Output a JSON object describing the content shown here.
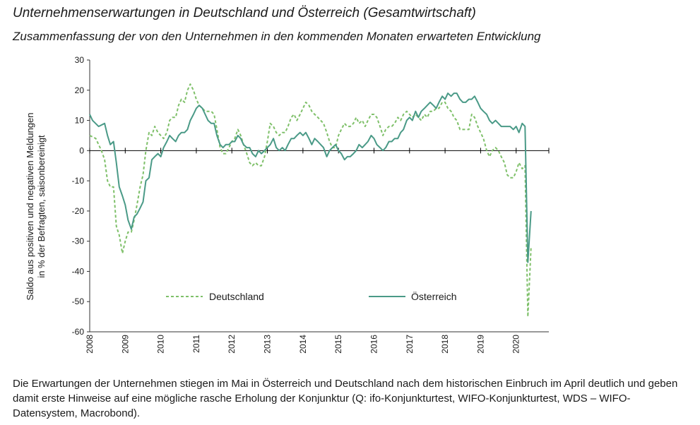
{
  "title": "Unternehmenserwartungen in Deutschland und Österreich (Gesamtwirtschaft)",
  "subtitle": "Zusammenfassung der von den Unternehmen in den kommenden Monaten erwarteten Entwicklung",
  "caption": "Die Erwartungen der Unternehmen stiegen im Mai in Österreich und Deutschland nach dem historischen Einbruch im April deutlich und geben damit erste Hinweise auf eine mögliche rasche Erholung der Konjunktur (Q: ifo-Konjunkturtest, WIFO-Konjunkturtest, WDS – WIFO-Datensystem, Macrobond).",
  "chart_data": {
    "type": "line",
    "ylabel_line1": "Saldo aus positiven und negativen Meldungen",
    "ylabel_line2": "in % der Befragten, saisonbereinigt",
    "ylim": [
      -60,
      30
    ],
    "yticks": [
      30,
      20,
      10,
      0,
      -10,
      -20,
      -30,
      -40,
      -50,
      -60
    ],
    "xlim": [
      2008,
      2020.92
    ],
    "xticks": [
      "2008",
      "2009",
      "2010",
      "2011",
      "2012",
      "2013",
      "2014",
      "2015",
      "2016",
      "2017",
      "2018",
      "2019",
      "2020"
    ],
    "legend_position": "inside-lower-middle",
    "series": [
      {
        "name": "Deutschland",
        "style": "dashed",
        "color": "#7fc06a",
        "points": [
          [
            2008.0,
            5
          ],
          [
            2008.17,
            4
          ],
          [
            2008.33,
            0
          ],
          [
            2008.42,
            -3
          ],
          [
            2008.5,
            -10
          ],
          [
            2008.58,
            -12
          ],
          [
            2008.67,
            -12
          ],
          [
            2008.75,
            -25
          ],
          [
            2008.83,
            -28
          ],
          [
            2008.92,
            -34
          ],
          [
            2009.0,
            -30
          ],
          [
            2009.08,
            -27
          ],
          [
            2009.17,
            -27
          ],
          [
            2009.25,
            -23
          ],
          [
            2009.33,
            -18
          ],
          [
            2009.42,
            -12
          ],
          [
            2009.5,
            -8
          ],
          [
            2009.58,
            0
          ],
          [
            2009.67,
            6
          ],
          [
            2009.75,
            5
          ],
          [
            2009.83,
            8
          ],
          [
            2009.92,
            6
          ],
          [
            2010.0,
            5
          ],
          [
            2010.08,
            4
          ],
          [
            2010.17,
            6
          ],
          [
            2010.25,
            10
          ],
          [
            2010.33,
            11
          ],
          [
            2010.42,
            11
          ],
          [
            2010.5,
            15
          ],
          [
            2010.58,
            17
          ],
          [
            2010.67,
            16
          ],
          [
            2010.75,
            20
          ],
          [
            2010.83,
            22
          ],
          [
            2010.92,
            20
          ],
          [
            2011.0,
            17
          ],
          [
            2011.08,
            15
          ],
          [
            2011.17,
            14
          ],
          [
            2011.25,
            13
          ],
          [
            2011.33,
            13
          ],
          [
            2011.42,
            13
          ],
          [
            2011.5,
            12
          ],
          [
            2011.58,
            7
          ],
          [
            2011.67,
            1
          ],
          [
            2011.75,
            -1
          ],
          [
            2011.83,
            -1
          ],
          [
            2011.92,
            1
          ],
          [
            2012.0,
            3
          ],
          [
            2012.08,
            4
          ],
          [
            2012.17,
            7
          ],
          [
            2012.25,
            5
          ],
          [
            2012.33,
            2
          ],
          [
            2012.42,
            -1
          ],
          [
            2012.5,
            -4
          ],
          [
            2012.58,
            -5
          ],
          [
            2012.67,
            -4
          ],
          [
            2012.75,
            -5
          ],
          [
            2012.83,
            -5
          ],
          [
            2012.92,
            -2
          ],
          [
            2013.0,
            3
          ],
          [
            2013.08,
            9
          ],
          [
            2013.17,
            8
          ],
          [
            2013.25,
            6
          ],
          [
            2013.33,
            5
          ],
          [
            2013.42,
            6
          ],
          [
            2013.5,
            6
          ],
          [
            2013.58,
            8
          ],
          [
            2013.67,
            11
          ],
          [
            2013.75,
            12
          ],
          [
            2013.83,
            10
          ],
          [
            2013.92,
            12
          ],
          [
            2014.0,
            14
          ],
          [
            2014.08,
            16
          ],
          [
            2014.17,
            15
          ],
          [
            2014.25,
            13
          ],
          [
            2014.33,
            12
          ],
          [
            2014.42,
            11
          ],
          [
            2014.5,
            10
          ],
          [
            2014.58,
            9
          ],
          [
            2014.67,
            6
          ],
          [
            2014.75,
            3
          ],
          [
            2014.83,
            1
          ],
          [
            2014.92,
            1
          ],
          [
            2015.0,
            5
          ],
          [
            2015.08,
            7
          ],
          [
            2015.17,
            9
          ],
          [
            2015.25,
            8
          ],
          [
            2015.33,
            8
          ],
          [
            2015.42,
            9
          ],
          [
            2015.5,
            11
          ],
          [
            2015.58,
            9
          ],
          [
            2015.67,
            10
          ],
          [
            2015.75,
            8
          ],
          [
            2015.83,
            10
          ],
          [
            2015.92,
            12
          ],
          [
            2016.0,
            12
          ],
          [
            2016.08,
            11
          ],
          [
            2016.17,
            8
          ],
          [
            2016.25,
            5
          ],
          [
            2016.33,
            7
          ],
          [
            2016.42,
            8
          ],
          [
            2016.5,
            8
          ],
          [
            2016.58,
            9
          ],
          [
            2016.67,
            11
          ],
          [
            2016.75,
            10
          ],
          [
            2016.83,
            12
          ],
          [
            2016.92,
            13
          ],
          [
            2017.0,
            12
          ],
          [
            2017.08,
            11
          ],
          [
            2017.17,
            12
          ],
          [
            2017.25,
            11
          ],
          [
            2017.33,
            10
          ],
          [
            2017.42,
            12
          ],
          [
            2017.5,
            11
          ],
          [
            2017.58,
            13
          ],
          [
            2017.67,
            13
          ],
          [
            2017.75,
            14
          ],
          [
            2017.83,
            14
          ],
          [
            2017.92,
            16
          ],
          [
            2018.0,
            16
          ],
          [
            2018.08,
            14
          ],
          [
            2018.17,
            13
          ],
          [
            2018.25,
            11
          ],
          [
            2018.33,
            10
          ],
          [
            2018.42,
            7
          ],
          [
            2018.5,
            7
          ],
          [
            2018.58,
            7
          ],
          [
            2018.67,
            7
          ],
          [
            2018.75,
            12
          ],
          [
            2018.83,
            11
          ],
          [
            2018.92,
            8
          ],
          [
            2019.0,
            6
          ],
          [
            2019.08,
            4
          ],
          [
            2019.17,
            0
          ],
          [
            2019.25,
            -2
          ],
          [
            2019.33,
            0
          ],
          [
            2019.42,
            1
          ],
          [
            2019.5,
            0
          ],
          [
            2019.58,
            -2
          ],
          [
            2019.67,
            -4
          ],
          [
            2019.75,
            -8
          ],
          [
            2019.83,
            -9
          ],
          [
            2019.92,
            -9
          ],
          [
            2020.0,
            -7
          ],
          [
            2020.08,
            -4
          ],
          [
            2020.17,
            -6
          ],
          [
            2020.25,
            -5
          ],
          [
            2020.33,
            -55
          ],
          [
            2020.42,
            -32
          ]
        ]
      },
      {
        "name": "Österreich",
        "style": "solid",
        "color": "#4a9a87",
        "points": [
          [
            2008.0,
            12
          ],
          [
            2008.08,
            10
          ],
          [
            2008.25,
            8
          ],
          [
            2008.42,
            9
          ],
          [
            2008.5,
            5
          ],
          [
            2008.58,
            2
          ],
          [
            2008.67,
            3
          ],
          [
            2008.75,
            -4
          ],
          [
            2008.83,
            -12
          ],
          [
            2008.92,
            -15
          ],
          [
            2009.0,
            -18
          ],
          [
            2009.08,
            -23
          ],
          [
            2009.17,
            -26
          ],
          [
            2009.25,
            -22
          ],
          [
            2009.33,
            -21
          ],
          [
            2009.42,
            -19
          ],
          [
            2009.5,
            -17
          ],
          [
            2009.58,
            -10
          ],
          [
            2009.67,
            -9
          ],
          [
            2009.75,
            -3
          ],
          [
            2009.83,
            -2
          ],
          [
            2009.92,
            -1
          ],
          [
            2010.0,
            -2
          ],
          [
            2010.08,
            1
          ],
          [
            2010.17,
            3
          ],
          [
            2010.25,
            5
          ],
          [
            2010.33,
            4
          ],
          [
            2010.42,
            3
          ],
          [
            2010.5,
            5
          ],
          [
            2010.58,
            6
          ],
          [
            2010.67,
            6
          ],
          [
            2010.75,
            7
          ],
          [
            2010.83,
            10
          ],
          [
            2010.92,
            12
          ],
          [
            2011.0,
            14
          ],
          [
            2011.08,
            15
          ],
          [
            2011.17,
            14
          ],
          [
            2011.25,
            12
          ],
          [
            2011.33,
            10
          ],
          [
            2011.42,
            9
          ],
          [
            2011.5,
            9
          ],
          [
            2011.58,
            5
          ],
          [
            2011.67,
            2
          ],
          [
            2011.75,
            1
          ],
          [
            2011.83,
            2
          ],
          [
            2011.92,
            2
          ],
          [
            2012.0,
            3
          ],
          [
            2012.08,
            3
          ],
          [
            2012.17,
            5
          ],
          [
            2012.25,
            4
          ],
          [
            2012.33,
            2
          ],
          [
            2012.42,
            1
          ],
          [
            2012.5,
            1
          ],
          [
            2012.58,
            -1
          ],
          [
            2012.67,
            -2
          ],
          [
            2012.75,
            0
          ],
          [
            2012.83,
            -1
          ],
          [
            2012.92,
            0
          ],
          [
            2013.0,
            1
          ],
          [
            2013.08,
            2
          ],
          [
            2013.17,
            4
          ],
          [
            2013.25,
            1
          ],
          [
            2013.33,
            0
          ],
          [
            2013.42,
            1
          ],
          [
            2013.5,
            0
          ],
          [
            2013.58,
            2
          ],
          [
            2013.67,
            4
          ],
          [
            2013.75,
            4
          ],
          [
            2013.83,
            5
          ],
          [
            2013.92,
            6
          ],
          [
            2014.0,
            5
          ],
          [
            2014.08,
            6
          ],
          [
            2014.17,
            4
          ],
          [
            2014.25,
            2
          ],
          [
            2014.33,
            4
          ],
          [
            2014.42,
            3
          ],
          [
            2014.5,
            2
          ],
          [
            2014.58,
            1
          ],
          [
            2014.67,
            -2
          ],
          [
            2014.75,
            0
          ],
          [
            2014.83,
            1
          ],
          [
            2014.92,
            2
          ],
          [
            2015.0,
            0
          ],
          [
            2015.08,
            -1
          ],
          [
            2015.17,
            -3
          ],
          [
            2015.25,
            -2
          ],
          [
            2015.33,
            -2
          ],
          [
            2015.42,
            -1
          ],
          [
            2015.5,
            0
          ],
          [
            2015.58,
            2
          ],
          [
            2015.67,
            1
          ],
          [
            2015.75,
            2
          ],
          [
            2015.83,
            3
          ],
          [
            2015.92,
            5
          ],
          [
            2016.0,
            4
          ],
          [
            2016.08,
            2
          ],
          [
            2016.17,
            1
          ],
          [
            2016.25,
            0
          ],
          [
            2016.33,
            1
          ],
          [
            2016.42,
            3
          ],
          [
            2016.5,
            3
          ],
          [
            2016.58,
            4
          ],
          [
            2016.67,
            4
          ],
          [
            2016.75,
            6
          ],
          [
            2016.83,
            7
          ],
          [
            2016.92,
            10
          ],
          [
            2017.0,
            11
          ],
          [
            2017.08,
            10
          ],
          [
            2017.17,
            13
          ],
          [
            2017.25,
            11
          ],
          [
            2017.33,
            13
          ],
          [
            2017.42,
            14
          ],
          [
            2017.5,
            15
          ],
          [
            2017.58,
            16
          ],
          [
            2017.67,
            15
          ],
          [
            2017.75,
            14
          ],
          [
            2017.83,
            16
          ],
          [
            2017.92,
            18
          ],
          [
            2018.0,
            17
          ],
          [
            2018.08,
            19
          ],
          [
            2018.17,
            18
          ],
          [
            2018.25,
            19
          ],
          [
            2018.33,
            19
          ],
          [
            2018.42,
            17
          ],
          [
            2018.5,
            16
          ],
          [
            2018.58,
            16
          ],
          [
            2018.67,
            17
          ],
          [
            2018.75,
            17
          ],
          [
            2018.83,
            18
          ],
          [
            2018.92,
            16
          ],
          [
            2019.0,
            14
          ],
          [
            2019.08,
            13
          ],
          [
            2019.17,
            12
          ],
          [
            2019.25,
            10
          ],
          [
            2019.33,
            9
          ],
          [
            2019.42,
            10
          ],
          [
            2019.5,
            9
          ],
          [
            2019.58,
            8
          ],
          [
            2019.67,
            8
          ],
          [
            2019.75,
            8
          ],
          [
            2019.83,
            8
          ],
          [
            2019.92,
            7
          ],
          [
            2020.0,
            8
          ],
          [
            2020.08,
            6
          ],
          [
            2020.17,
            9
          ],
          [
            2020.25,
            8
          ],
          [
            2020.33,
            -37
          ],
          [
            2020.42,
            -20
          ]
        ]
      }
    ]
  }
}
